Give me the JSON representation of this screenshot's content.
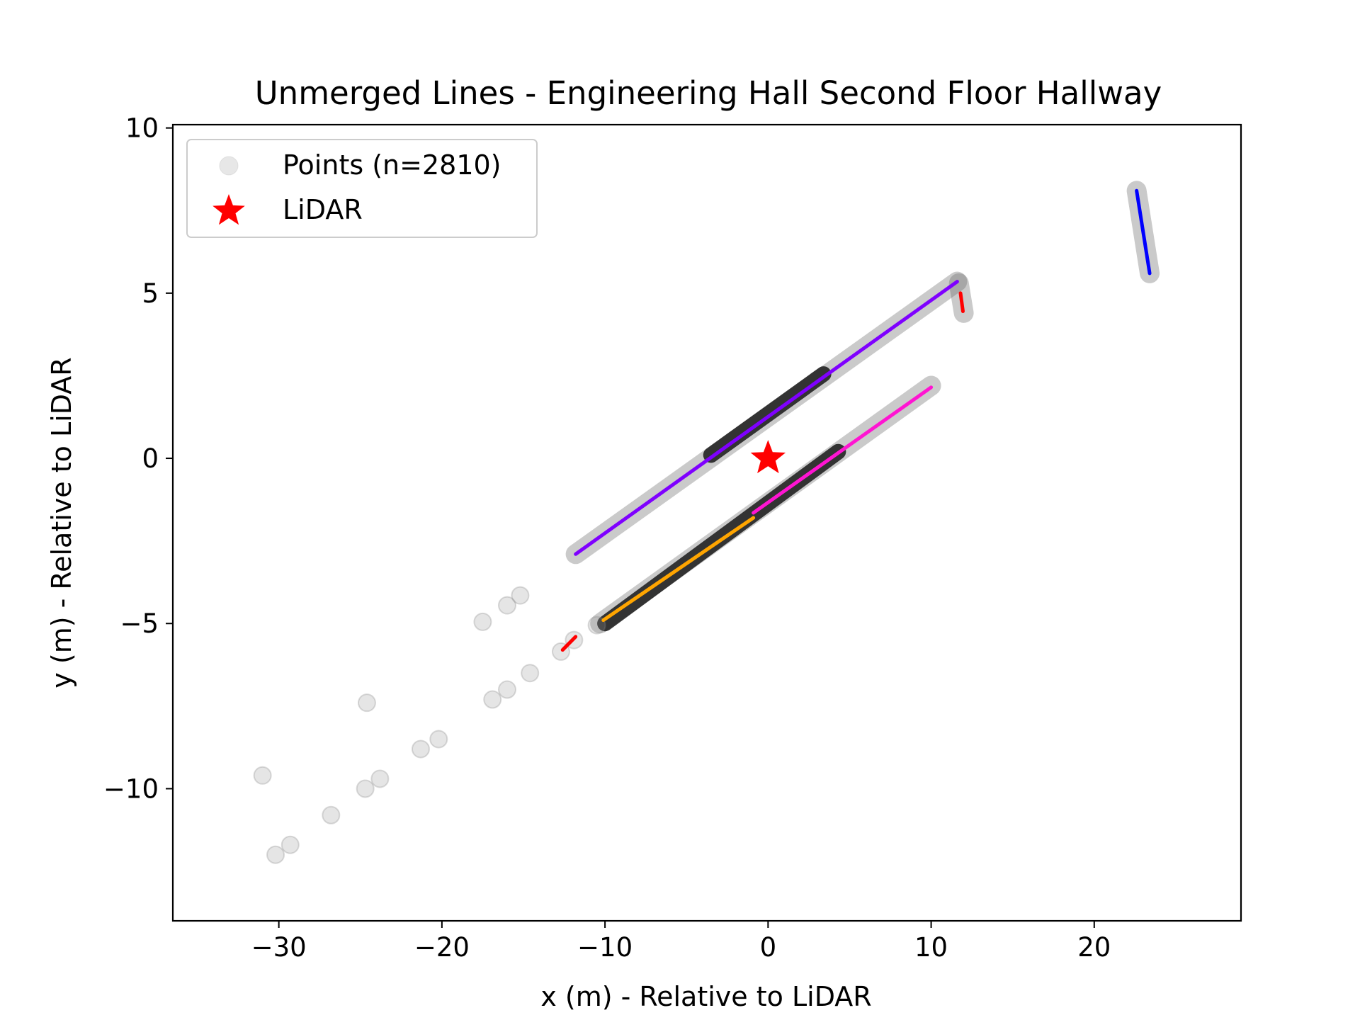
{
  "chart_data": {
    "type": "scatter",
    "title": "Unmerged Lines - Engineering Hall Second Floor Hallway",
    "xlabel": "x (m) - Relative to LiDAR",
    "ylabel": "y (m) - Relative to LiDAR",
    "xlim": [
      -36.5,
      29
    ],
    "ylim": [
      -14,
      10.1
    ],
    "x_ticks": [
      -30,
      -20,
      -10,
      0,
      10,
      20
    ],
    "y_ticks": [
      -10,
      -5,
      0,
      5,
      10
    ],
    "x_tick_labels": [
      "−30",
      "−20",
      "−10",
      "0",
      "10",
      "20"
    ],
    "y_tick_labels": [
      "−10",
      "−5",
      "0",
      "5",
      "10"
    ],
    "grid": false,
    "legend_position": "top-left",
    "legend": [
      {
        "label": "Points (n=2810)",
        "marker": "circle",
        "color": "#bbbbbb"
      },
      {
        "label": "LiDAR",
        "marker": "star",
        "color": "#ff0000"
      }
    ],
    "lidar": {
      "x": 0,
      "y": 0,
      "color": "#ff0000"
    },
    "point_color": "#000000",
    "dense_walls": [
      {
        "x1": -11.8,
        "y1": -2.9,
        "x2": 11.6,
        "y2": 5.35
      },
      {
        "x1": -10.3,
        "y1": -5.0,
        "x2": 10.0,
        "y2": 2.2
      },
      {
        "x1": 11.7,
        "y1": 5.3,
        "x2": 12.0,
        "y2": 4.4
      },
      {
        "x1": 22.6,
        "y1": 8.1,
        "x2": 23.4,
        "y2": 5.6
      }
    ],
    "points": [
      [
        -31.0,
        -9.6
      ],
      [
        -30.2,
        -12.0
      ],
      [
        -29.3,
        -11.7
      ],
      [
        -26.8,
        -10.8
      ],
      [
        -24.7,
        -10.0
      ],
      [
        -24.6,
        -7.4
      ],
      [
        -23.8,
        -9.7
      ],
      [
        -21.3,
        -8.8
      ],
      [
        -20.2,
        -8.5
      ],
      [
        -17.5,
        -4.95
      ],
      [
        -16.9,
        -7.3
      ],
      [
        -16.0,
        -4.45
      ],
      [
        -16.0,
        -7.0
      ],
      [
        -15.2,
        -4.15
      ],
      [
        -14.6,
        -6.5
      ],
      [
        -12.7,
        -5.85
      ],
      [
        -11.9,
        -5.5
      ],
      [
        -10.5,
        -5.05
      ]
    ],
    "segments": [
      {
        "x1": -11.8,
        "y1": -2.9,
        "x2": 11.6,
        "y2": 5.35,
        "color": "#7f00ff"
      },
      {
        "x1": -10.1,
        "y1": -4.9,
        "x2": -0.9,
        "y2": -1.8,
        "color": "#ffa500"
      },
      {
        "x1": -0.9,
        "y1": -1.65,
        "x2": 10.0,
        "y2": 2.15,
        "color": "#ff14d2"
      },
      {
        "x1": -12.6,
        "y1": -5.8,
        "x2": -11.8,
        "y2": -5.4,
        "color": "#ff0000"
      },
      {
        "x1": 11.8,
        "y1": 5.0,
        "x2": 11.95,
        "y2": 4.45,
        "color": "#ff0000"
      },
      {
        "x1": 22.6,
        "y1": 8.1,
        "x2": 23.4,
        "y2": 5.6,
        "color": "#0000ff"
      }
    ]
  }
}
